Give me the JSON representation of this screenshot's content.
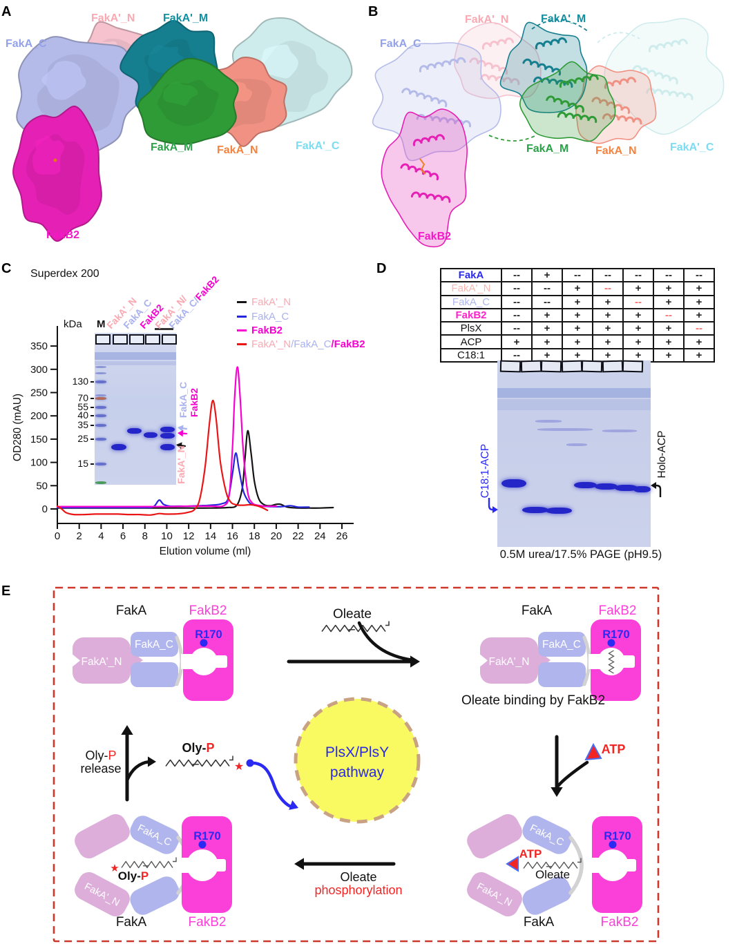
{
  "panels": {
    "a": "A",
    "b": "B",
    "c": "C",
    "d": "D",
    "e": "E"
  },
  "colors": {
    "label": {
      "fakap_n": "#f9a9b2",
      "fakap_m": "#128fa0",
      "faka_c": "#93a2e8",
      "faka_m": "#2aa048",
      "faka_n": "#f5833f",
      "fakap_c": "#7cdcf2",
      "fakb2": "#f318c8"
    },
    "surface": {
      "fakap_n": "#f5c2ce",
      "fakap_m": "#157f8f",
      "faka_c": "#b5bbe9",
      "faka_m": "#2f9b37",
      "faka_n": "#f09183",
      "fakap_c": "#cfeced",
      "fakb2": "#e520b4"
    },
    "e": {
      "plum": "#dcaed9",
      "peri": "#b1b5ed",
      "magenta": "#fb3fd9",
      "gray": "#d2d2d2",
      "yellow": "#f9f961",
      "circle_border": "#c9a284",
      "border": "#cd382b",
      "blue": "#2a2af2",
      "red": "#f22525"
    }
  },
  "structure_labels": {
    "fakap_n": "FakA'_N",
    "fakap_m": "FakA'_M",
    "faka_c": "FakA_C",
    "faka_m": "FakA_M",
    "faka_n": "FakA_N",
    "fakap_c": "FakA'_C",
    "fakb2": "FakB2"
  },
  "panel_c": {
    "title": "Superdex 200",
    "chart_data": {
      "type": "line",
      "title": "Superdex 200",
      "xlabel": "Elution volume (ml)",
      "ylabel": "OD280 (mAU)",
      "xlim": [
        0,
        27.5
      ],
      "ylim": [
        -30,
        385
      ],
      "grid": false,
      "legend_position": "upper right",
      "xticks": [
        0,
        2,
        4,
        6,
        8,
        10,
        12,
        14,
        16,
        18,
        20,
        22,
        24,
        26
      ],
      "yticks": [
        0,
        50,
        100,
        150,
        200,
        250,
        300,
        350
      ],
      "series": [
        {
          "name": "FakA'_N",
          "color": "#141414",
          "peak_ml": 17.4,
          "peak_mau": 168,
          "points": [
            [
              0,
              2
            ],
            [
              2,
              2
            ],
            [
              4,
              2
            ],
            [
              6,
              2
            ],
            [
              8,
              2
            ],
            [
              10,
              2
            ],
            [
              12,
              2
            ],
            [
              14,
              2
            ],
            [
              15.5,
              3
            ],
            [
              16.4,
              8
            ],
            [
              16.9,
              45
            ],
            [
              17.15,
              110
            ],
            [
              17.4,
              168
            ],
            [
              17.7,
              120
            ],
            [
              18,
              60
            ],
            [
              18.4,
              22
            ],
            [
              18.9,
              9
            ],
            [
              19.5,
              7
            ],
            [
              20,
              10
            ],
            [
              20.4,
              10
            ],
            [
              21,
              4
            ],
            [
              22,
              2
            ],
            [
              23,
              2
            ],
            [
              24,
              2
            ],
            [
              25.2,
              3
            ]
          ]
        },
        {
          "name": "FakA_C",
          "color": "#2525dd",
          "peak_ml": 16.3,
          "peak_mau": 120,
          "points": [
            [
              0,
              3
            ],
            [
              2,
              3
            ],
            [
              4,
              3
            ],
            [
              6,
              3
            ],
            [
              8,
              3
            ],
            [
              8.8,
              5
            ],
            [
              9.3,
              19
            ],
            [
              9.7,
              10
            ],
            [
              10.3,
              6
            ],
            [
              11,
              6
            ],
            [
              12,
              6
            ],
            [
              13,
              7
            ],
            [
              14,
              8
            ],
            [
              15,
              11
            ],
            [
              15.6,
              22
            ],
            [
              16,
              75
            ],
            [
              16.3,
              120
            ],
            [
              16.6,
              85
            ],
            [
              17,
              38
            ],
            [
              17.5,
              15
            ],
            [
              18,
              8
            ],
            [
              18.7,
              6
            ],
            [
              19.5,
              5
            ],
            [
              20.5,
              5
            ],
            [
              21.3,
              7
            ],
            [
              22,
              4
            ],
            [
              23,
              4
            ]
          ]
        },
        {
          "name": "FakB2",
          "color": "#f800d0",
          "peak_ml": 16.45,
          "peak_mau": 305,
          "points": [
            [
              0,
              5
            ],
            [
              2,
              5
            ],
            [
              4,
              5
            ],
            [
              6,
              5
            ],
            [
              8,
              5
            ],
            [
              10,
              5
            ],
            [
              12,
              6
            ],
            [
              14,
              6
            ],
            [
              15.2,
              7
            ],
            [
              15.7,
              30
            ],
            [
              16,
              130
            ],
            [
              16.2,
              240
            ],
            [
              16.45,
              305
            ],
            [
              16.7,
              240
            ],
            [
              17,
              120
            ],
            [
              17.4,
              35
            ],
            [
              17.8,
              13
            ],
            [
              18.3,
              8
            ],
            [
              19,
              6
            ],
            [
              20,
              6
            ]
          ]
        },
        {
          "name": "FakA'_N/FakA_C/FakB2",
          "color": "#ea1515",
          "peak_ml": 14.2,
          "peak_mau": 233,
          "points": [
            [
              0,
              6
            ],
            [
              0.4,
              0
            ],
            [
              0.8,
              -8
            ],
            [
              1.5,
              -12
            ],
            [
              2.5,
              -12
            ],
            [
              3.5,
              -11
            ],
            [
              4.5,
              -11
            ],
            [
              5.5,
              -11
            ],
            [
              6.5,
              -12
            ],
            [
              7.5,
              -12
            ],
            [
              8.5,
              -13
            ],
            [
              9.3,
              -10
            ],
            [
              9.8,
              -11
            ],
            [
              10.5,
              -11
            ],
            [
              11.3,
              -10
            ],
            [
              12,
              -7
            ],
            [
              12.5,
              -2
            ],
            [
              13,
              20
            ],
            [
              13.5,
              90
            ],
            [
              13.9,
              185
            ],
            [
              14.2,
              233
            ],
            [
              14.5,
              195
            ],
            [
              14.9,
              100
            ],
            [
              15.4,
              38
            ],
            [
              15.8,
              16
            ],
            [
              16.3,
              9
            ],
            [
              17,
              8
            ],
            [
              17.6,
              9
            ],
            [
              18.2,
              7
            ],
            [
              18.7,
              3
            ],
            [
              19.2,
              -3
            ]
          ]
        }
      ]
    },
    "legend": [
      {
        "dash": "#141414",
        "parts": [
          {
            "t": "FakA'_N",
            "c": "#f9a9b2"
          }
        ]
      },
      {
        "dash": "#2525dd",
        "parts": [
          {
            "t": "FakA_C",
            "c": "#a9b2ee"
          }
        ]
      },
      {
        "dash": "#f800d0",
        "parts": [
          {
            "t": "FakB2",
            "c": "#f800d0",
            "b": true
          }
        ]
      },
      {
        "dash": "#ea1515",
        "parts": [
          {
            "t": "FakA'_N",
            "c": "#f9a9b2"
          },
          {
            "t": "/FakA_C",
            "c": "#a9b2ee"
          },
          {
            "t": "/FakB2",
            "c": "#f800d0",
            "b": true
          }
        ]
      }
    ],
    "gel": {
      "kda": "kDa",
      "marker_lane": "M",
      "lane_labels": [
        {
          "parts": [
            {
              "t": "FakA'_N",
              "c": "#f9a9b2"
            }
          ]
        },
        {
          "parts": [
            {
              "t": "FakA_C",
              "c": "#a9b2ee"
            }
          ]
        },
        {
          "parts": [
            {
              "t": "FakB2",
              "c": "#f800d0",
              "b": true
            }
          ]
        },
        {
          "parts": [
            {
              "t": "FakA'_N/",
              "c": "#f9a9b2"
            }
          ]
        },
        {
          "parts": [
            {
              "t": "FakA_C/",
              "c": "#a9b2ee"
            },
            {
              "t": "FakB2",
              "c": "#f800d0",
              "b": true
            }
          ]
        }
      ],
      "ladder": [
        "130",
        "70",
        "55",
        "40",
        "35",
        "25",
        "15"
      ],
      "band_labels": [
        {
          "text": "FakA_C",
          "color": "#a9b2ee"
        },
        {
          "text": "FakB2",
          "color": "#f800d0"
        },
        {
          "text": "FakA'_N",
          "color": "#f9a9b2"
        }
      ]
    }
  },
  "panel_d": {
    "table": {
      "rows": [
        {
          "label": "FakA",
          "color": "#2a2af0",
          "cells": [
            "--",
            "+",
            "--",
            "--",
            "--",
            "--",
            "--"
          ],
          "red": -1
        },
        {
          "label": "FakA'_N",
          "color": "#f9b8b0",
          "cells": [
            "--",
            "--",
            "+",
            "--",
            "+",
            "+",
            "+"
          ],
          "red": 3
        },
        {
          "label": "FakA_C",
          "color": "#b0b8ee",
          "cells": [
            "--",
            "--",
            "+",
            "+",
            "--",
            "+",
            "+"
          ],
          "red": 4
        },
        {
          "label": "FakB2",
          "color": "#ff22cc",
          "cells": [
            "--",
            "+",
            "+",
            "+",
            "+",
            "--",
            "+"
          ],
          "red": 5
        },
        {
          "label": "PlsX",
          "color": "#111111",
          "cells": [
            "--",
            "+",
            "+",
            "+",
            "+",
            "+",
            "--"
          ],
          "red": 6
        },
        {
          "label": "ACP",
          "color": "#111111",
          "cells": [
            "+",
            "+",
            "+",
            "+",
            "+",
            "+",
            "+"
          ],
          "red": -1
        },
        {
          "label": "C18:1",
          "color": "#111111",
          "cells": [
            "--",
            "+",
            "+",
            "+",
            "+",
            "+",
            "+"
          ],
          "red": -1
        }
      ]
    },
    "gel_left_label": "C18:1-ACP",
    "gel_right_label": "Holo-ACP",
    "caption": "0.5M urea/17.5% PAGE (pH9.5)"
  },
  "panel_e": {
    "faka": "FakA",
    "fakb2": "FakB2",
    "fakan": "FakA'_N",
    "fakac": "FakA_C",
    "r170": "R170",
    "oleate": "Oleate",
    "binding_caption": "Oleate binding by FakB2",
    "atp": "ATP",
    "pathway_line1": "PlsX/PlsY",
    "pathway_line2": "pathway",
    "release_black": "Oly-",
    "release_red": "P",
    "release_line2": "release",
    "olyp_black": "Oly-",
    "olyp_red": "P",
    "phos_line1": "Oleate",
    "phos_line2": "phosphorylation"
  }
}
